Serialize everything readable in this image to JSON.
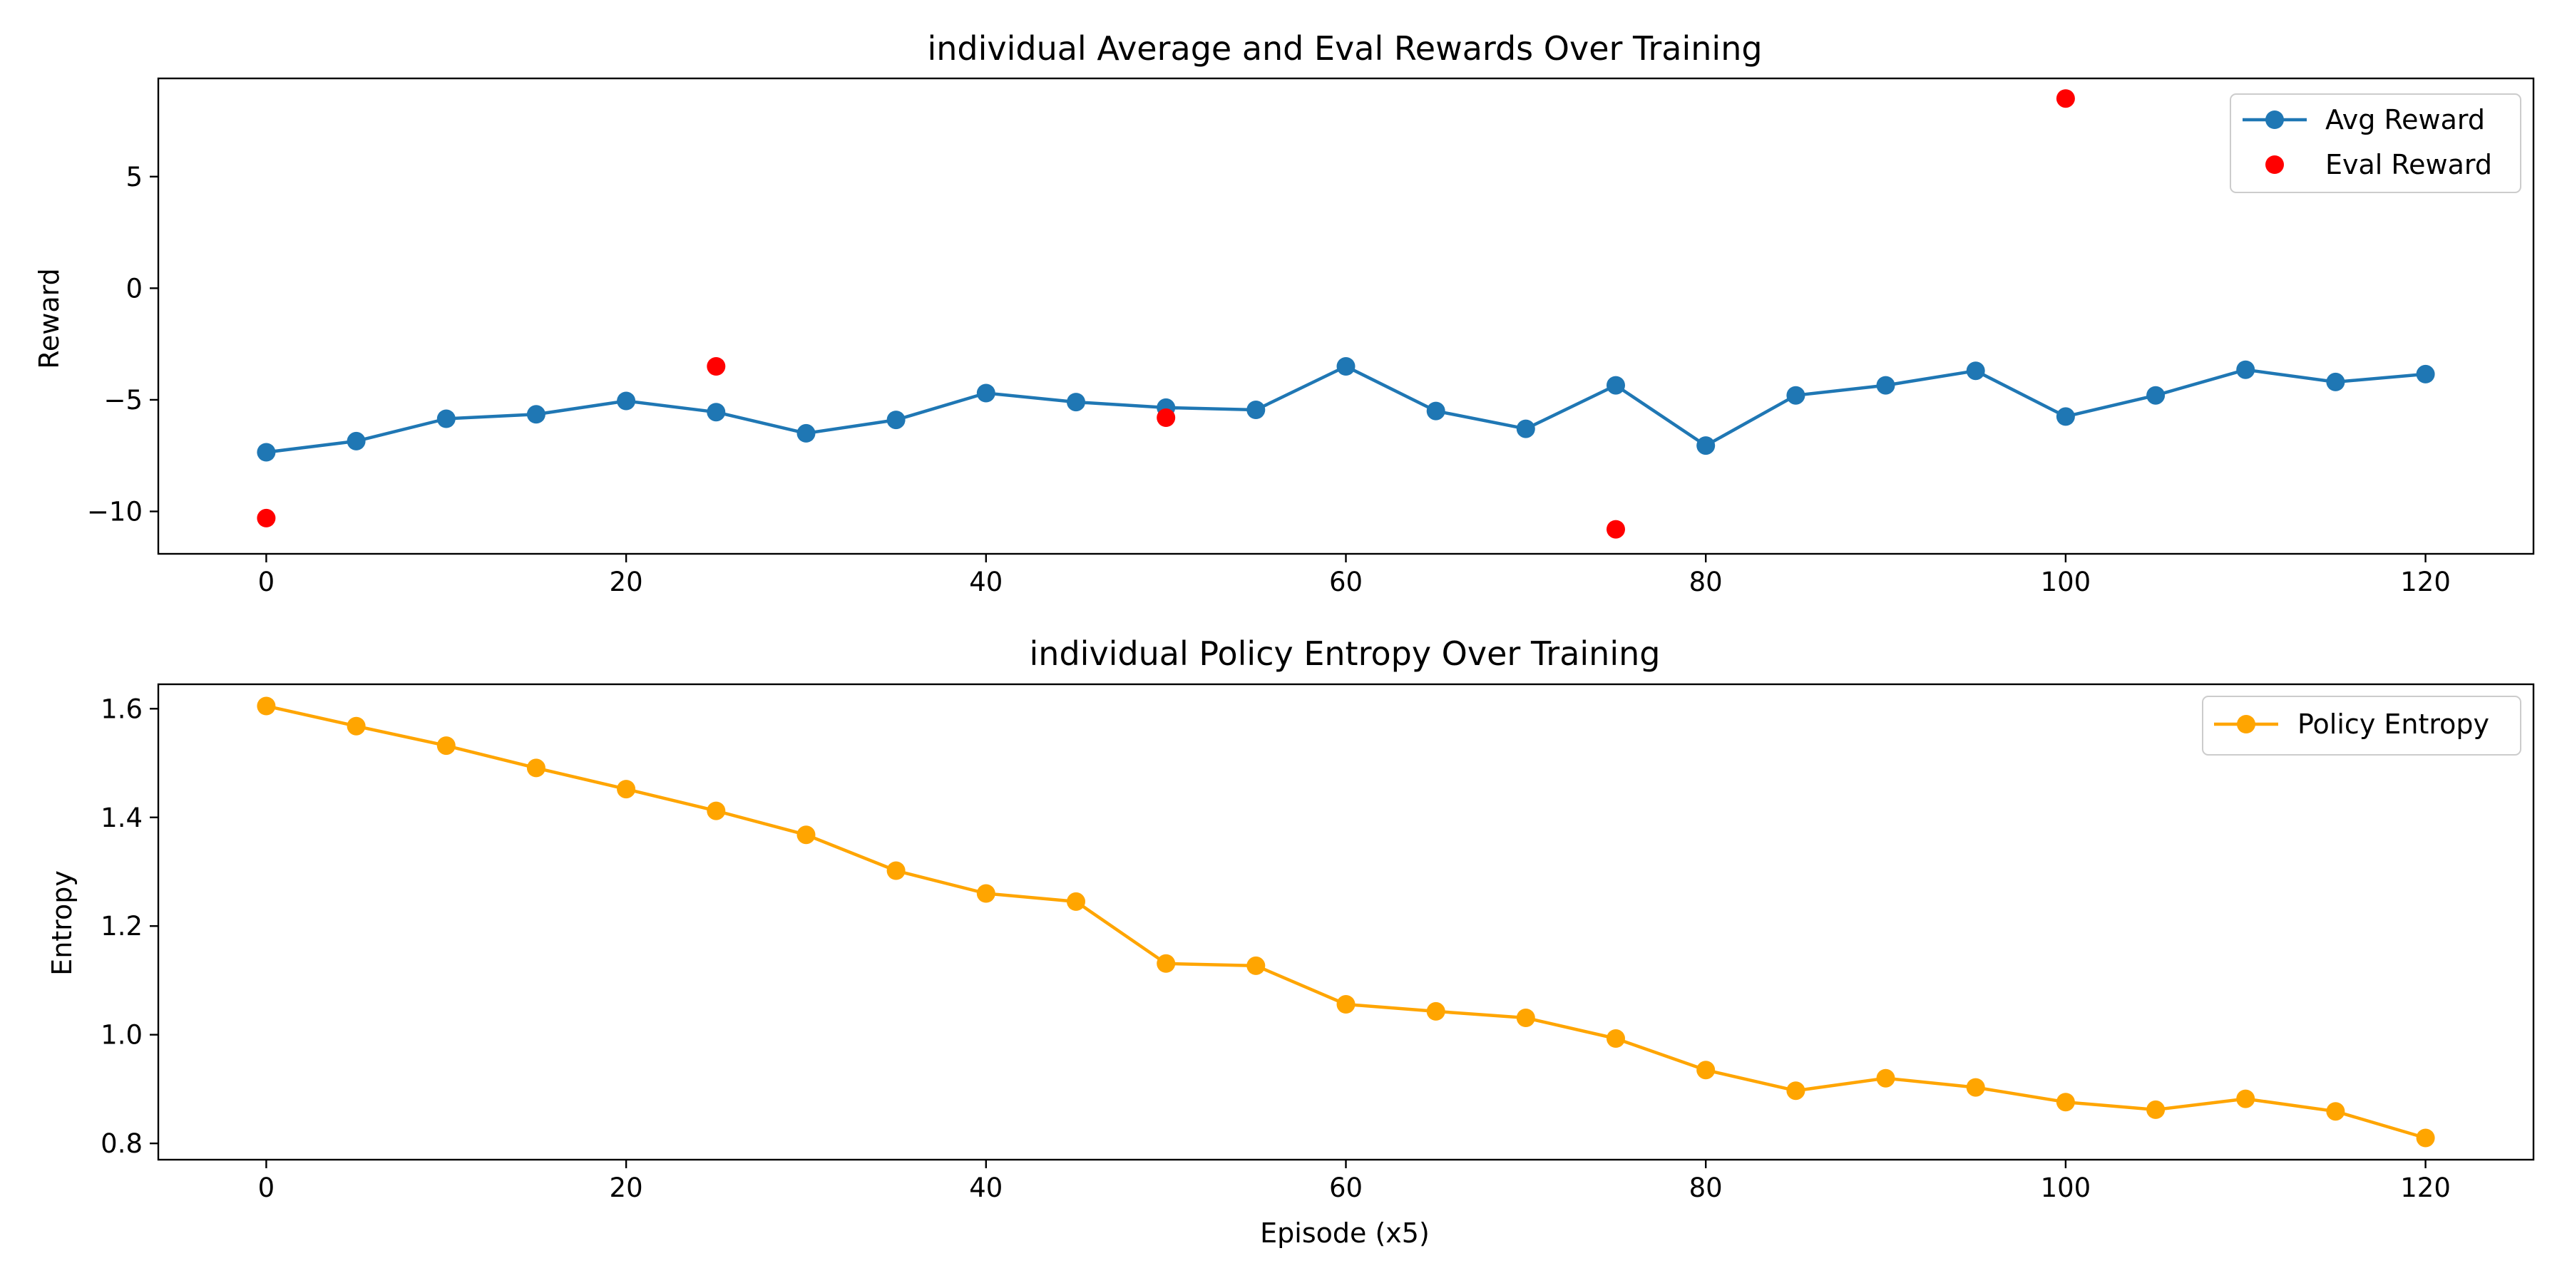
{
  "chart_data": [
    {
      "type": "line",
      "title": "individual Average and Eval Rewards Over Training",
      "xlabel": "",
      "ylabel": "Reward",
      "xlim": [
        -6,
        126
      ],
      "ylim": [
        -11.9,
        9.4
      ],
      "xticks": [
        0,
        20,
        40,
        60,
        80,
        100,
        120
      ],
      "yticks": [
        -10,
        -5,
        0,
        5
      ],
      "grid": false,
      "legend_position": "top-right",
      "series": [
        {
          "name": "Avg Reward",
          "style": "line-marker",
          "color": "#1f77b4",
          "x": [
            0,
            5,
            10,
            15,
            20,
            25,
            30,
            35,
            40,
            45,
            50,
            55,
            60,
            65,
            70,
            75,
            80,
            85,
            90,
            95,
            100,
            105,
            110,
            115,
            120
          ],
          "y": [
            -7.35,
            -6.85,
            -5.85,
            -5.65,
            -5.05,
            -5.55,
            -6.5,
            -5.9,
            -4.7,
            -5.1,
            -5.35,
            -5.45,
            -3.5,
            -5.5,
            -6.3,
            -4.35,
            -7.05,
            -4.8,
            -4.35,
            -3.7,
            -5.75,
            -4.8,
            -3.65,
            -4.2,
            -3.85
          ]
        },
        {
          "name": "Eval Reward",
          "style": "marker",
          "color": "#ff0000",
          "x": [
            0,
            25,
            50,
            75,
            100
          ],
          "y": [
            -10.3,
            -3.5,
            -5.8,
            -10.8,
            8.5
          ]
        }
      ]
    },
    {
      "type": "line",
      "title": "individual Policy Entropy Over Training",
      "xlabel": "Episode (x5)",
      "ylabel": "Entropy",
      "xlim": [
        -6,
        126
      ],
      "ylim": [
        0.77,
        1.645
      ],
      "xticks": [
        0,
        20,
        40,
        60,
        80,
        100,
        120
      ],
      "yticks": [
        0.8,
        1.0,
        1.2,
        1.4,
        1.6
      ],
      "grid": false,
      "legend_position": "top-right",
      "series": [
        {
          "name": "Policy Entropy",
          "style": "line-marker",
          "color": "#ffa500",
          "x": [
            0,
            5,
            10,
            15,
            20,
            25,
            30,
            35,
            40,
            45,
            50,
            55,
            60,
            65,
            70,
            75,
            80,
            85,
            90,
            95,
            100,
            105,
            110,
            115,
            120
          ],
          "y": [
            1.605,
            1.568,
            1.532,
            1.491,
            1.452,
            1.412,
            1.368,
            1.302,
            1.26,
            1.245,
            1.131,
            1.127,
            1.056,
            1.043,
            1.031,
            0.993,
            0.935,
            0.897,
            0.92,
            0.903,
            0.876,
            0.862,
            0.882,
            0.859,
            0.81
          ]
        }
      ]
    }
  ]
}
